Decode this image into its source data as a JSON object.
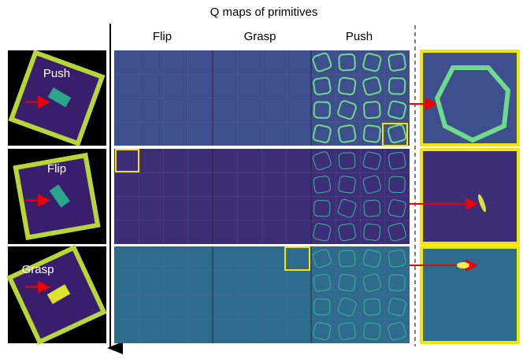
{
  "title": "Q maps of primitives",
  "columns": [
    "Flip",
    "Grasp",
    "Push"
  ],
  "rows": [
    "Push",
    "Flip",
    "Grasp"
  ]
}
